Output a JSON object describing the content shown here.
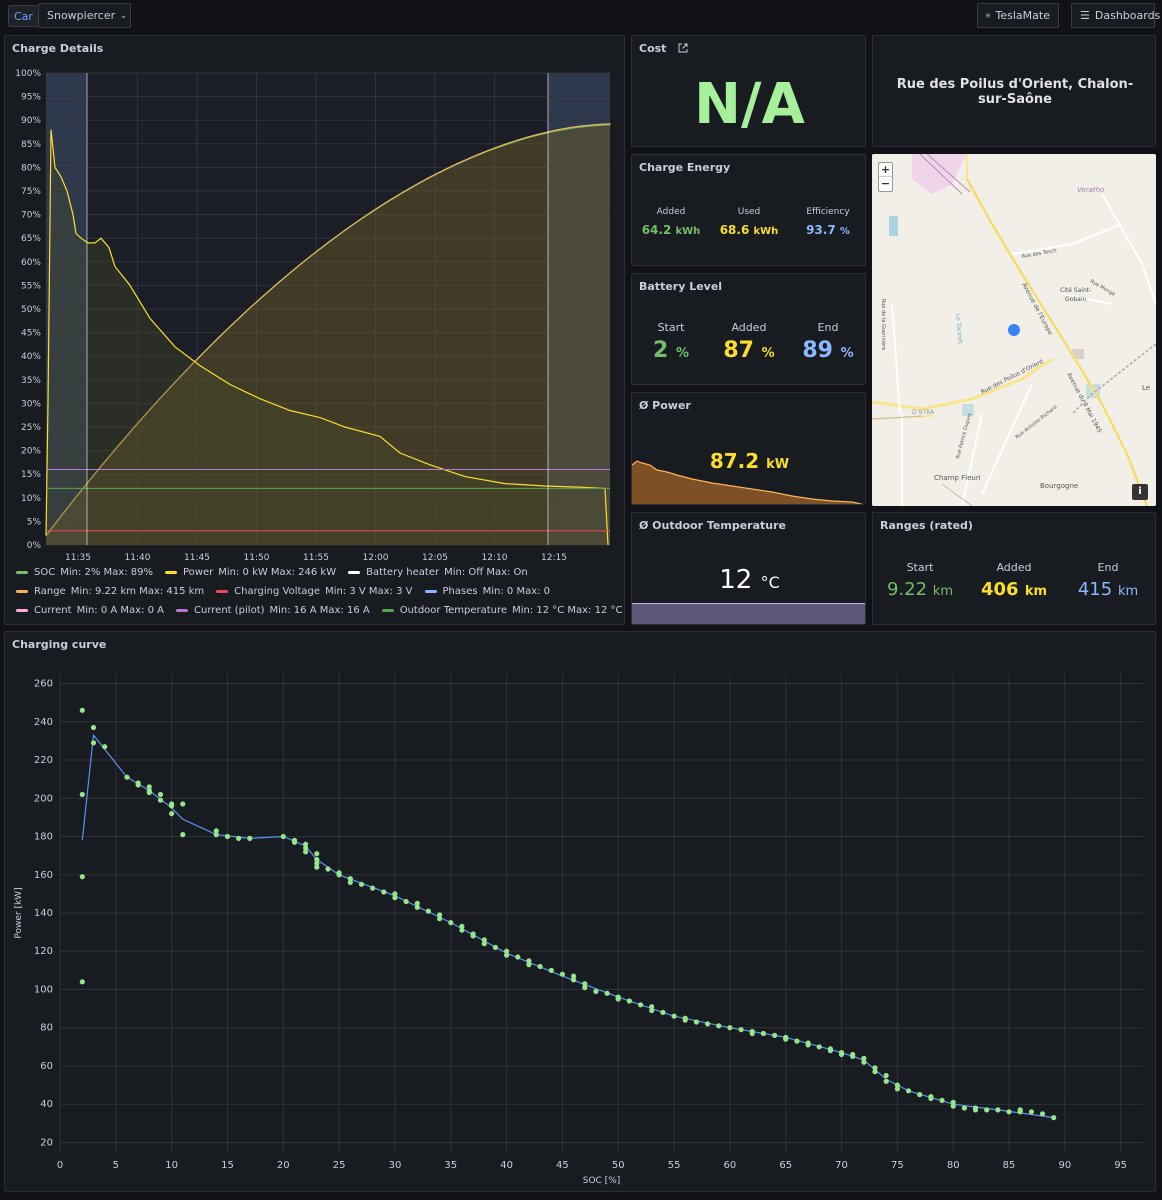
{
  "topbar": {
    "car_tag": "Car",
    "car_name": "Snowpiercer",
    "teslamate": "TeslaMate",
    "dashboards": "Dashboards"
  },
  "charge_details": {
    "title": "Charge Details",
    "y_ticks": [
      "100%",
      "95%",
      "90%",
      "85%",
      "80%",
      "75%",
      "70%",
      "65%",
      "60%",
      "55%",
      "50%",
      "45%",
      "40%",
      "35%",
      "30%",
      "25%",
      "20%",
      "15%",
      "10%",
      "5%",
      "0%"
    ],
    "x_ticks": [
      "11:35",
      "11:40",
      "11:45",
      "11:50",
      "11:55",
      "12:00",
      "12:05",
      "12:10",
      "12:15"
    ],
    "legend": [
      {
        "name": "SOC",
        "color": "#73bf69",
        "stats": "Min: 2%   Max: 89%"
      },
      {
        "name": "Power",
        "color": "#fade2a",
        "stats": "Min: 0 kW   Max: 246 kW"
      },
      {
        "name": "Battery heater",
        "color": "#ffffff",
        "stats": "Min: Off   Max: On"
      },
      {
        "name": "Range",
        "color": "#ffb357",
        "stats": "Min: 9.22 km   Max: 415 km"
      },
      {
        "name": "Charging Voltage",
        "color": "#f2495c",
        "stats": "Min: 3 V   Max: 3 V"
      },
      {
        "name": "Phases",
        "color": "#8ab8ff",
        "stats": "Min: 0   Max: 0"
      },
      {
        "name": "Current",
        "color": "#ffa6e0",
        "stats": "Min: 0 A   Max: 0 A"
      },
      {
        "name": "Current (pilot)",
        "color": "#b877d9",
        "stats": "Min: 16 A   Max: 16 A"
      },
      {
        "name": "Outdoor Temperature",
        "color": "#56a64b",
        "stats": "Min: 12 °C   Max: 12 °C"
      }
    ]
  },
  "cost": {
    "title": "Cost",
    "value": "N/A"
  },
  "location": {
    "address": "Rue des Poilus d'Orient, Chalon-sur-Saône"
  },
  "charge_energy": {
    "title": "Charge Energy",
    "added_label": "Added",
    "added_value": "64.2",
    "added_unit": "kWh",
    "used_label": "Used",
    "used_value": "68.6",
    "used_unit": "kWh",
    "eff_label": "Efficiency",
    "eff_value": "93.7",
    "eff_unit": "%"
  },
  "battery_level": {
    "title": "Battery Level",
    "start_label": "Start",
    "start_value": "2",
    "start_unit": "%",
    "added_label": "Added",
    "added_value": "87",
    "added_unit": "%",
    "end_label": "End",
    "end_value": "89",
    "end_unit": "%"
  },
  "power": {
    "title": "Ø Power",
    "value": "87.2",
    "unit": "kW"
  },
  "outdoor_temp": {
    "title": "Ø Outdoor Temperature",
    "value": "12",
    "unit": "°C"
  },
  "ranges": {
    "title": "Ranges (rated)",
    "start_label": "Start",
    "start_value": "9.22",
    "start_unit": "km",
    "added_label": "Added",
    "added_value": "406",
    "added_unit": "km",
    "end_label": "End",
    "end_value": "415",
    "end_unit": "km"
  },
  "map": {
    "zoom_in": "+",
    "zoom_out": "−",
    "info": "i",
    "labels": [
      "Veratho",
      "Rue des Tesch",
      "Cité Saint-Gobain",
      "Rue Monge",
      "Avenue de l'Europe",
      "Rue des Poilus d'Orient",
      "Avenue du 8 Mai 1945",
      "Rue Antoine Richard",
      "Rue de la Guerinière",
      "D 978A",
      "Rue Patrick Dupuis",
      "Champ Fleuri",
      "Bourgogne",
      "Le Tacinet",
      "Le"
    ]
  },
  "colors": {
    "soc": "#73bf69",
    "power": "#fade2a",
    "range": "#ffb357",
    "added": "#fade2a",
    "end": "#8ab8ff"
  },
  "charging_curve": {
    "title": "Charging curve",
    "chart_data": {
      "type": "scatter",
      "title": "Charging curve",
      "xlabel": "SOC [%]",
      "ylabel": "Power [kW]",
      "xlim": [
        0,
        97
      ],
      "ylim": [
        15,
        265
      ],
      "x_ticks": [
        0,
        5,
        10,
        15,
        20,
        25,
        30,
        35,
        40,
        45,
        50,
        55,
        60,
        65,
        70,
        75,
        80,
        85,
        90,
        95
      ],
      "y_ticks": [
        20,
        40,
        60,
        80,
        100,
        120,
        140,
        160,
        180,
        200,
        220,
        240,
        260
      ],
      "grid": true,
      "points": [
        [
          2,
          246
        ],
        [
          2,
          202
        ],
        [
          2,
          159
        ],
        [
          2,
          104
        ],
        [
          3,
          237
        ],
        [
          3,
          229
        ],
        [
          4,
          227
        ],
        [
          6,
          211
        ],
        [
          7,
          208
        ],
        [
          7,
          207
        ],
        [
          8,
          206
        ],
        [
          8,
          204
        ],
        [
          8,
          203
        ],
        [
          9,
          202
        ],
        [
          9,
          199
        ],
        [
          10,
          197
        ],
        [
          10,
          196
        ],
        [
          10,
          192
        ],
        [
          11,
          197
        ],
        [
          11,
          181
        ],
        [
          14,
          183
        ],
        [
          14,
          181
        ],
        [
          15,
          180
        ],
        [
          16,
          179
        ],
        [
          17,
          179
        ],
        [
          20,
          180
        ],
        [
          21,
          178
        ],
        [
          21,
          177
        ],
        [
          22,
          176
        ],
        [
          22,
          174
        ],
        [
          22,
          172
        ],
        [
          23,
          171
        ],
        [
          23,
          168
        ],
        [
          23,
          166
        ],
        [
          23,
          164
        ],
        [
          24,
          163
        ],
        [
          25,
          161
        ],
        [
          25,
          160
        ],
        [
          26,
          158
        ],
        [
          26,
          156
        ],
        [
          27,
          155
        ],
        [
          28,
          153
        ],
        [
          29,
          151
        ],
        [
          30,
          150
        ],
        [
          30,
          148
        ],
        [
          31,
          146
        ],
        [
          32,
          145
        ],
        [
          32,
          143
        ],
        [
          33,
          141
        ],
        [
          34,
          139
        ],
        [
          34,
          137
        ],
        [
          35,
          135
        ],
        [
          36,
          133
        ],
        [
          36,
          131
        ],
        [
          37,
          129
        ],
        [
          37,
          128
        ],
        [
          38,
          126
        ],
        [
          38,
          124
        ],
        [
          39,
          122
        ],
        [
          40,
          120
        ],
        [
          40,
          118
        ],
        [
          41,
          117
        ],
        [
          42,
          115
        ],
        [
          42,
          113
        ],
        [
          43,
          112
        ],
        [
          44,
          110
        ],
        [
          45,
          108
        ],
        [
          46,
          107
        ],
        [
          46,
          105
        ],
        [
          47,
          103
        ],
        [
          47,
          101
        ],
        [
          48,
          99
        ],
        [
          49,
          98
        ],
        [
          50,
          96
        ],
        [
          50,
          95
        ],
        [
          51,
          94
        ],
        [
          52,
          92
        ],
        [
          53,
          91
        ],
        [
          53,
          89
        ],
        [
          54,
          88
        ],
        [
          55,
          86
        ],
        [
          56,
          85
        ],
        [
          56,
          84
        ],
        [
          57,
          83
        ],
        [
          58,
          82
        ],
        [
          59,
          81
        ],
        [
          60,
          80
        ],
        [
          61,
          79
        ],
        [
          62,
          78
        ],
        [
          62,
          77
        ],
        [
          63,
          77
        ],
        [
          64,
          76
        ],
        [
          65,
          75
        ],
        [
          65,
          74
        ],
        [
          66,
          73
        ],
        [
          67,
          72
        ],
        [
          67,
          71
        ],
        [
          68,
          70
        ],
        [
          69,
          69
        ],
        [
          69,
          68
        ],
        [
          70,
          67
        ],
        [
          70,
          66
        ],
        [
          71,
          66
        ],
        [
          71,
          65
        ],
        [
          72,
          64
        ],
        [
          72,
          62
        ],
        [
          73,
          59
        ],
        [
          73,
          57
        ],
        [
          74,
          55
        ],
        [
          74,
          52
        ],
        [
          75,
          50
        ],
        [
          75,
          48
        ],
        [
          76,
          47
        ],
        [
          77,
          45
        ],
        [
          78,
          44
        ],
        [
          78,
          43
        ],
        [
          79,
          42
        ],
        [
          80,
          41
        ],
        [
          80,
          39
        ],
        [
          81,
          38
        ],
        [
          82,
          38
        ],
        [
          82,
          37
        ],
        [
          83,
          37
        ],
        [
          84,
          37
        ],
        [
          85,
          36
        ],
        [
          86,
          36
        ],
        [
          86,
          37
        ],
        [
          87,
          36
        ],
        [
          88,
          35
        ],
        [
          89,
          33
        ]
      ],
      "trend": [
        [
          2,
          178
        ],
        [
          3,
          233
        ],
        [
          6,
          211
        ],
        [
          8,
          204
        ],
        [
          10,
          195
        ],
        [
          11,
          189
        ],
        [
          14,
          181
        ],
        [
          17,
          179
        ],
        [
          20,
          180
        ],
        [
          22,
          175
        ],
        [
          23,
          168
        ],
        [
          25,
          160
        ],
        [
          30,
          149
        ],
        [
          35,
          135
        ],
        [
          40,
          119
        ],
        [
          45,
          107
        ],
        [
          50,
          96
        ],
        [
          55,
          86
        ],
        [
          60,
          80
        ],
        [
          65,
          75
        ],
        [
          70,
          67
        ],
        [
          72,
          63
        ],
        [
          74,
          53
        ],
        [
          76,
          47
        ],
        [
          80,
          40
        ],
        [
          84,
          37
        ],
        [
          89,
          33
        ]
      ]
    }
  }
}
